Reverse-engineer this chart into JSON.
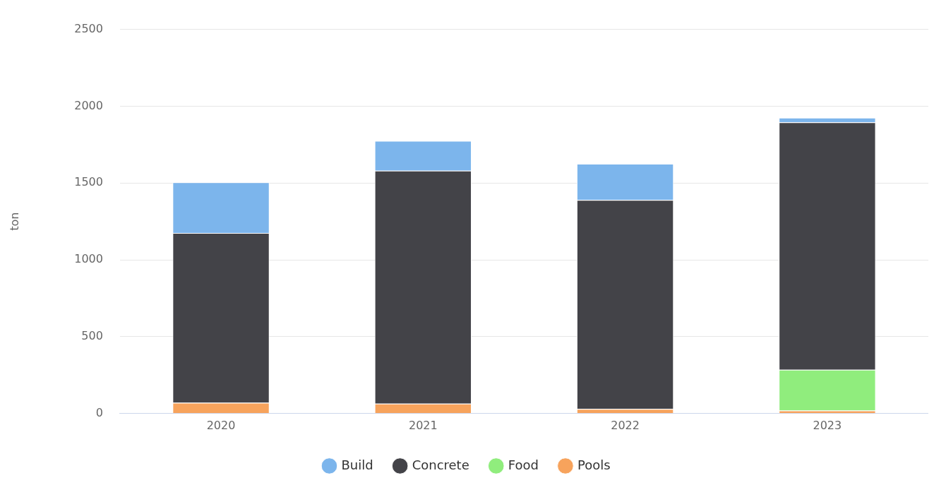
{
  "chart_data": {
    "type": "bar",
    "stacked": true,
    "ylabel": "ton",
    "categories": [
      "2020",
      "2021",
      "2022",
      "2023"
    ],
    "series": [
      {
        "name": "Pools",
        "color": "#f7a35c",
        "values": [
          70,
          65,
          30,
          20
        ]
      },
      {
        "name": "Food",
        "color": "#90ed7d",
        "values": [
          0,
          0,
          0,
          265
        ]
      },
      {
        "name": "Concrete",
        "color": "#434348",
        "values": [
          1105,
          1515,
          1360,
          1610
        ]
      },
      {
        "name": "Build",
        "color": "#7cb5ec",
        "values": [
          330,
          195,
          235,
          30
        ]
      }
    ],
    "ylim": [
      0,
      2500
    ],
    "yticks": [
      0,
      500,
      1000,
      1500,
      2000,
      2500
    ],
    "grid": "y",
    "legend": "bottom",
    "marker": "circle"
  }
}
